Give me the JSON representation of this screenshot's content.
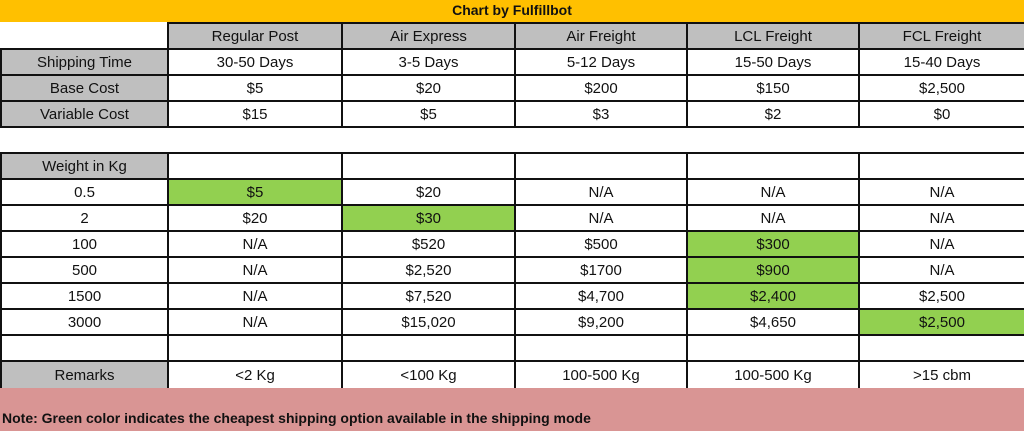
{
  "title": "Chart by Fulfillbot",
  "modes": [
    "Regular Post",
    "Air Express",
    "Air Freight",
    "LCL Freight",
    "FCL Freight"
  ],
  "info_rows": [
    {
      "label": "Shipping Time",
      "values": [
        "30-50 Days",
        "3-5 Days",
        "5-12 Days",
        "15-50 Days",
        "15-40 Days"
      ]
    },
    {
      "label": "Base Cost",
      "values": [
        "$5",
        "$20",
        "$200",
        "$150",
        "$2,500"
      ]
    },
    {
      "label": "Variable Cost",
      "values": [
        "$15",
        "$5",
        "$3",
        "$2",
        "$0"
      ]
    }
  ],
  "weight_header": "Weight in Kg",
  "weight_rows": [
    {
      "weight": "0.5",
      "values": [
        "$5",
        "$20",
        "N/A",
        "N/A",
        "N/A"
      ],
      "cheapest": 0
    },
    {
      "weight": "2",
      "values": [
        "$20",
        "$30",
        "N/A",
        "N/A",
        "N/A"
      ],
      "cheapest": 1
    },
    {
      "weight": "100",
      "values": [
        "N/A",
        "$520",
        "$500",
        "$300",
        "N/A"
      ],
      "cheapest": 3
    },
    {
      "weight": "500",
      "values": [
        "N/A",
        "$2,520",
        "$1700",
        "$900",
        "N/A"
      ],
      "cheapest": 3
    },
    {
      "weight": "1500",
      "values": [
        "N/A",
        "$7,520",
        "$4,700",
        "$2,400",
        "$2,500"
      ],
      "cheapest": 3
    },
    {
      "weight": "3000",
      "values": [
        "N/A",
        "$15,020",
        "$9,200",
        "$4,650",
        "$2,500"
      ],
      "cheapest": 4
    }
  ],
  "remarks": {
    "label": "Remarks",
    "values": [
      "<2 Kg",
      "<100 Kg",
      "100-500 Kg",
      "100-500 Kg",
      ">15 cbm"
    ]
  },
  "note": "Note: Green color indicates the cheapest shipping option available in the shipping mode",
  "colors": {
    "title_bg": "#ffc000",
    "header_bg": "#bfbfbf",
    "cheapest": "#92d050",
    "note_bg": "#d99594"
  }
}
